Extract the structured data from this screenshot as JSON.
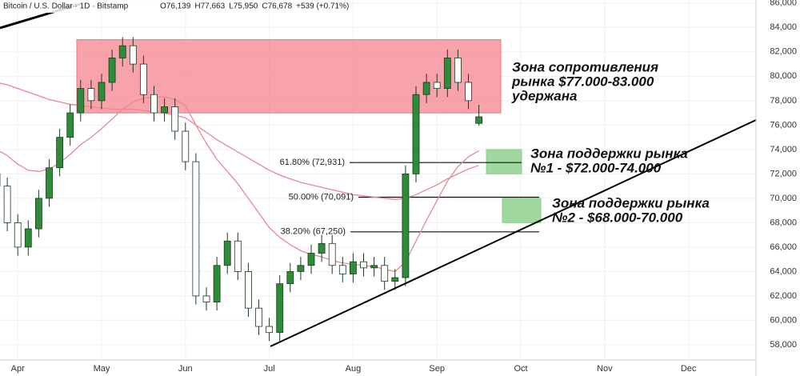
{
  "chart_data": {
    "type": "candlestick",
    "header": "Bitcoin / U.S. Dollar · 1D · Bitstamp",
    "ohlc_labels": [
      "O76,139",
      "H77,663",
      "L75,950",
      "C76,678",
      "+539 (+0.71%)"
    ],
    "categories": [
      null,
      null,
      "Apr",
      null,
      null,
      null,
      null,
      null,
      null,
      null,
      "May",
      null,
      null,
      null,
      null,
      null,
      null,
      null,
      "Jun",
      null,
      null,
      null,
      null,
      null,
      null,
      null,
      "Jul",
      null,
      null,
      null,
      null,
      null,
      null,
      null,
      "Aug",
      null,
      null,
      null,
      null,
      null,
      null,
      null,
      "Sep",
      null,
      null,
      null,
      null,
      null,
      null,
      null,
      "Oct",
      null,
      null,
      null,
      null,
      null,
      null,
      null,
      "Nov",
      null,
      null,
      null,
      null,
      null,
      null,
      null,
      "Dec",
      null,
      null,
      null,
      null,
      null,
      null
    ],
    "open": [
      72000,
      71000,
      68000,
      66000,
      67500,
      70000,
      72500,
      75000,
      77000,
      79000,
      78000,
      79500,
      81500,
      82500,
      81000,
      78500,
      77000,
      77500,
      75500,
      73000,
      62000,
      61500,
      64500,
      66500,
      64000,
      61000,
      59500,
      59000,
      63000,
      64000,
      64500,
      65500,
      66300,
      64500,
      63800,
      64800,
      64300,
      64500,
      63200,
      63500,
      72000,
      78500,
      79500,
      79000,
      81500,
      79500,
      76139,
      null,
      null,
      null,
      null,
      null,
      null,
      null,
      null,
      null,
      null,
      null,
      null,
      null,
      null,
      null,
      null,
      null,
      null,
      null,
      null,
      null,
      null,
      null,
      null,
      null,
      null
    ],
    "high": [
      72700,
      71700,
      68700,
      68200,
      70700,
      73200,
      75700,
      77700,
      79700,
      79700,
      80200,
      82200,
      83200,
      83200,
      81700,
      79200,
      78200,
      78200,
      76200,
      73700,
      62700,
      65200,
      67200,
      67200,
      64700,
      61700,
      60200,
      63700,
      64700,
      65200,
      66200,
      67000,
      67000,
      65200,
      65500,
      65500,
      65200,
      65200,
      64200,
      72700,
      79200,
      80200,
      80200,
      82200,
      82200,
      80200,
      77663,
      null,
      null,
      null,
      null,
      null,
      null,
      null,
      null,
      null,
      null,
      null,
      null,
      null,
      null,
      null,
      null,
      null,
      null,
      null,
      null,
      null,
      null,
      null,
      null,
      null,
      null
    ],
    "low": [
      70300,
      67300,
      65300,
      65300,
      66800,
      69300,
      71800,
      74300,
      76300,
      77300,
      77300,
      78800,
      80800,
      80300,
      77800,
      76300,
      76300,
      74800,
      72300,
      61300,
      60800,
      60800,
      63800,
      63300,
      60300,
      58800,
      58300,
      58300,
      62300,
      63300,
      63800,
      64800,
      63800,
      63100,
      63100,
      63600,
      63600,
      62500,
      62500,
      62800,
      71300,
      77800,
      78300,
      78300,
      78800,
      77300,
      75950,
      null,
      null,
      null,
      null,
      null,
      null,
      null,
      null,
      null,
      null,
      null,
      null,
      null,
      null,
      null,
      null,
      null,
      null,
      null,
      null,
      null,
      null,
      null,
      null,
      null,
      null
    ],
    "close": [
      71000,
      68000,
      66000,
      67500,
      70000,
      72500,
      75000,
      77000,
      79000,
      78000,
      79500,
      81500,
      82500,
      81000,
      78500,
      77000,
      77500,
      75500,
      73000,
      62000,
      61500,
      64500,
      66500,
      64000,
      61000,
      59500,
      59000,
      63000,
      64000,
      64500,
      65500,
      66300,
      64500,
      63800,
      64800,
      64300,
      64500,
      63200,
      63500,
      72000,
      78500,
      79500,
      79000,
      81500,
      79500,
      78000,
      76678,
      null,
      null,
      null,
      null,
      null,
      null,
      null,
      null,
      null,
      null,
      null,
      null,
      null,
      null,
      null,
      null,
      null,
      null,
      null,
      null,
      null,
      null,
      null,
      null,
      null,
      null
    ],
    "up_color": "#2e8b3a",
    "down_color": "#ffffff",
    "series": [
      {
        "color": "#e58a92",
        "values": [
          74000,
          73500,
          72800,
          72300,
          72200,
          72400,
          72900,
          73600,
          74400,
          75000,
          75700,
          76500,
          77300,
          77900,
          78200,
          78300,
          78300,
          78100,
          77600,
          76000,
          74500,
          73200,
          72200,
          71200,
          70000,
          68800,
          67600,
          66800,
          66200,
          65700,
          65400,
          65200,
          64900,
          64700,
          64600,
          64500,
          64400,
          64200,
          64000,
          64800,
          66500,
          68200,
          69800,
          71400,
          72600,
          73400,
          73900,
          null,
          null,
          null,
          null,
          null,
          null,
          null,
          null,
          null,
          null,
          null,
          null,
          null,
          null,
          null,
          null,
          null,
          null,
          null,
          null,
          null,
          null,
          null,
          null,
          null,
          null
        ]
      },
      {
        "color": "#e58a92",
        "values": [
          79500,
          79300,
          79000,
          78700,
          78400,
          78100,
          77900,
          77700,
          77600,
          77500,
          77400,
          77300,
          77300,
          77300,
          77200,
          77100,
          77000,
          76800,
          76600,
          76000,
          75400,
          74800,
          74300,
          73800,
          73300,
          72800,
          72300,
          71900,
          71600,
          71300,
          71100,
          70900,
          70700,
          70500,
          70300,
          70200,
          70100,
          70000,
          69900,
          70000,
          70300,
          70700,
          71100,
          71600,
          72000,
          72400,
          72700,
          null,
          null,
          null,
          null,
          null,
          null,
          null,
          null,
          null,
          null,
          null,
          null,
          null,
          null,
          null,
          null,
          null,
          null,
          null,
          null,
          null,
          null,
          null,
          null,
          null,
          null
        ]
      }
    ],
    "ylim": [
      56750,
      86250
    ],
    "yticks": [
      {
        "value": 58000,
        "label": "58,000"
      },
      {
        "value": 60000,
        "label": "60,000"
      },
      {
        "value": 62000,
        "label": "62,000"
      },
      {
        "value": 64000,
        "label": "64,000"
      },
      {
        "value": 66000,
        "label": "66,000"
      },
      {
        "value": 68000,
        "label": "68,000"
      },
      {
        "value": 70000,
        "label": "70,000"
      },
      {
        "value": 72000,
        "label": "72,000"
      },
      {
        "value": 74000,
        "label": "74,000"
      },
      {
        "value": 76000,
        "label": "76,000"
      },
      {
        "value": 78000,
        "label": "78,000"
      },
      {
        "value": 80000,
        "label": "80,000"
      },
      {
        "value": 82000,
        "label": "82,000"
      },
      {
        "value": 84000,
        "label": "84,000"
      },
      {
        "value": 86000,
        "label": "86,000"
      }
    ],
    "grid": true,
    "fib_levels": [
      {
        "label": "61.80% (72,931)",
        "value": 72931
      },
      {
        "label": "50.00% (70,091)",
        "value": 70091
      },
      {
        "label": "38.20% (67,250)",
        "value": 67250
      }
    ],
    "zones": [
      {
        "low": 77000,
        "high": 83000,
        "color": "#f4717f",
        "lines": [
          "Зона сопротивления",
          "рынка $77.000-83.000",
          "удержана"
        ]
      },
      {
        "low": 72000,
        "high": 74000,
        "color": "#8fd18f",
        "lines": [
          "Зона поддержки рынка",
          "№1 - $72.000-74.000"
        ]
      },
      {
        "low": 68000,
        "high": 70000,
        "color": "#8fd18f",
        "lines": [
          "Зона поддержки рынка",
          "№2 - $68.000-70.000"
        ]
      }
    ]
  }
}
